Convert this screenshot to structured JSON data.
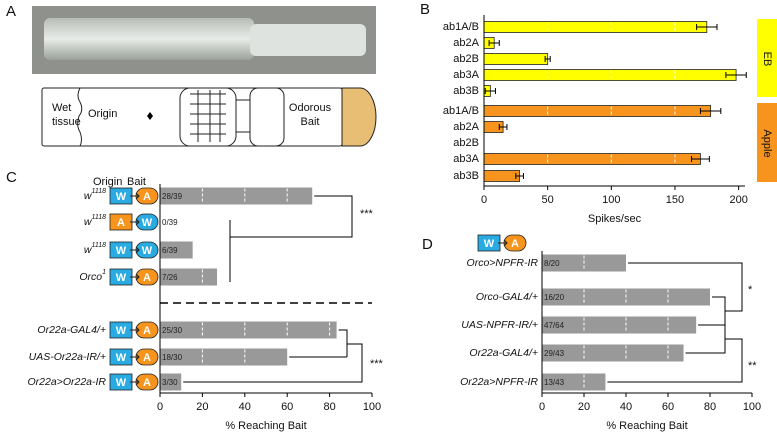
{
  "panel_a": {
    "label": "A",
    "wet_tissue": [
      "Wet",
      "tissue"
    ],
    "origin": "Origin",
    "odorous_bait": [
      "Odorous",
      "Bait"
    ]
  },
  "chart_data": [
    {
      "type": "bar",
      "orientation": "horizontal",
      "panel_label": "B",
      "categories": [
        "ab1A/B",
        "ab2A",
        "ab2B",
        "ab3A",
        "ab3B"
      ],
      "series": [
        {
          "name": "EB",
          "color": "#ffff00",
          "values": [
            175,
            8,
            50,
            198,
            5
          ],
          "errors": [
            8,
            4,
            2,
            8,
            4
          ]
        },
        {
          "name": "Apple",
          "color": "#f7941d",
          "values": [
            178,
            15,
            0,
            170,
            28
          ],
          "errors": [
            8,
            3,
            0,
            7,
            3
          ]
        }
      ],
      "xlabel": "Spikes/sec",
      "xlim": [
        0,
        205
      ],
      "xticks": [
        0,
        50,
        100,
        150,
        200
      ],
      "grid": true
    },
    {
      "type": "bar",
      "orientation": "horizontal",
      "panel_label": "C",
      "origin_label": "Origin",
      "bait_label": "Bait",
      "categories": [
        {
          "name": "w",
          "sup": "1118"
        },
        {
          "name": "w",
          "sup": "1118"
        },
        {
          "name": "w",
          "sup": "1118"
        },
        {
          "name": "Orco",
          "sup": "1"
        },
        "Or22a-GAL4/+",
        "UAS-Or22a-IR/+",
        "Or22a>Or22a-IR"
      ],
      "origin": [
        "W",
        "A",
        "W",
        "W",
        "W",
        "W",
        "W"
      ],
      "bait": [
        "A",
        "W",
        "W",
        "A",
        "A",
        "A",
        "A"
      ],
      "values": [
        71.8,
        0,
        15.4,
        26.9,
        83.3,
        60,
        10
      ],
      "value_labels": [
        "28/39",
        "0/39",
        "6/39",
        "7/26",
        "25/30",
        "18/30",
        "3/30"
      ],
      "color": "#999999",
      "significance": [
        "***",
        "***"
      ],
      "xlabel": "% Reaching Bait",
      "xlim": [
        0,
        100
      ],
      "xticks": [
        0,
        20,
        40,
        60,
        80,
        100
      ],
      "grid": true
    },
    {
      "type": "bar",
      "orientation": "horizontal",
      "panel_label": "D",
      "pictogram": {
        "origin": "W",
        "bait": "A"
      },
      "categories": [
        "Orco>NPFR-IR",
        "Orco-GAL4/+",
        "UAS-NPFR-IR/+",
        "Or22a-GAL4/+",
        "Or22a>NPFR-IR"
      ],
      "values": [
        40,
        80,
        73.4,
        67.4,
        30.2
      ],
      "value_labels": [
        "8/20",
        "16/20",
        "47/64",
        "29/43",
        "13/43"
      ],
      "color": "#999999",
      "significance": [
        "*",
        "**"
      ],
      "xlabel": "% Reaching Bait",
      "xlim": [
        0,
        100
      ],
      "xticks": [
        0,
        20,
        40,
        60,
        80,
        100
      ],
      "grid": true
    }
  ]
}
